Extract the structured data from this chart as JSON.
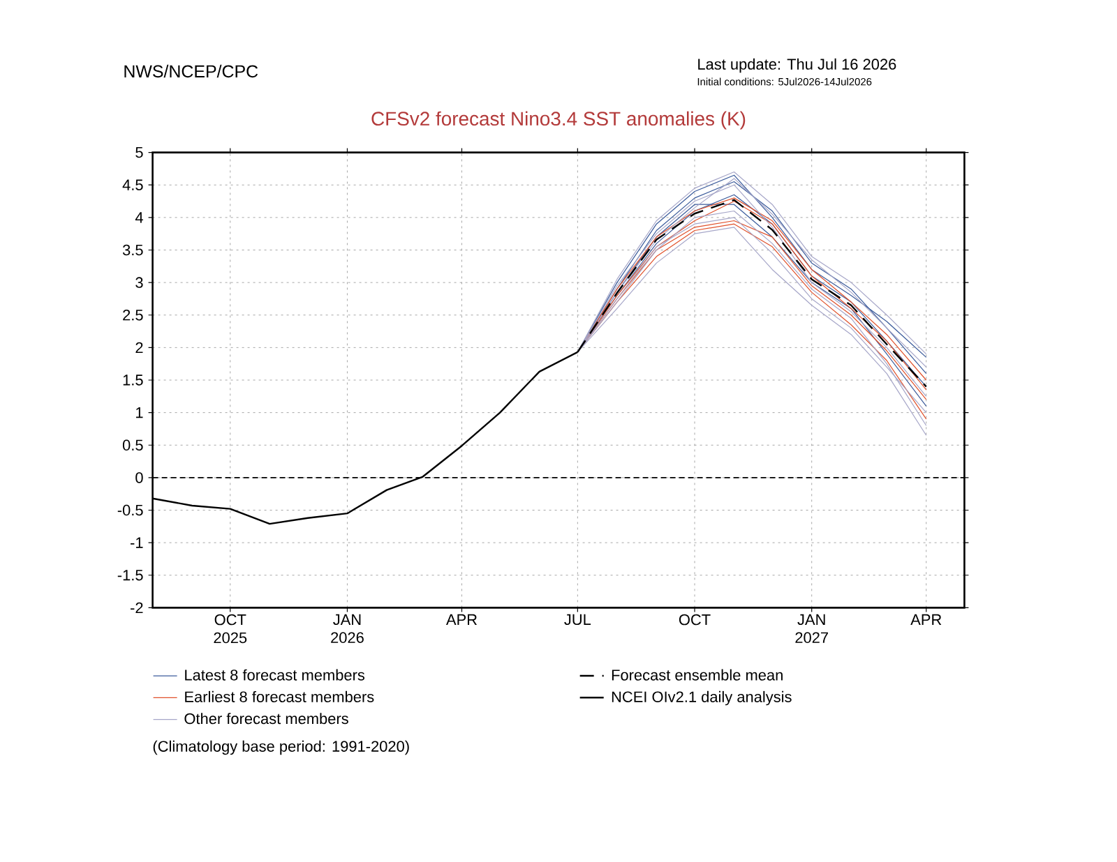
{
  "chart_data": {
    "type": "line",
    "title": "CFSv2 forecast Nino3.4 SST anomalies (K)",
    "annotations": [
      "NWS/NCEP/CPC",
      "Last update: Thu Jul 16 2026",
      "Initial conditions: 5Jul2026-14Jul2026",
      "(Climatology base period: 1991-2020)"
    ],
    "x": [
      "2026-07-01",
      "2026-08-01",
      "2026-09-01",
      "2026-10-01",
      "2026-11-01",
      "2026-12-01",
      "2027-01-01",
      "2027-02-01",
      "2027-03-01",
      "2027-04-01"
    ],
    "series": [
      {
        "name": "Latest 8 forecast members",
        "color": "#3b5b9b",
        "values": [
          1.93,
          2.9,
          3.8,
          4.3,
          4.55,
          4.1,
          3.3,
          2.9,
          2.3,
          1.6
        ]
      },
      {
        "color": "#3b5b9b",
        "values": [
          1.93,
          3.0,
          3.9,
          4.4,
          4.65,
          4.0,
          3.2,
          2.8,
          2.4,
          1.85
        ]
      },
      {
        "color": "#3b5b9b",
        "values": [
          1.93,
          2.8,
          3.6,
          4.1,
          4.35,
          3.9,
          3.1,
          2.7,
          2.1,
          1.4
        ]
      },
      {
        "color": "#3b5b9b",
        "values": [
          1.93,
          2.85,
          3.7,
          4.2,
          4.2,
          3.7,
          3.0,
          2.6,
          1.9,
          1.1
        ]
      },
      {
        "name": "Earliest 8 forecast members",
        "color": "#e0502a",
        "values": [
          1.93,
          2.8,
          3.55,
          3.95,
          4.25,
          3.9,
          3.1,
          2.6,
          2.1,
          1.35
        ]
      },
      {
        "color": "#e0502a",
        "values": [
          1.93,
          2.75,
          3.5,
          3.85,
          3.95,
          3.7,
          2.95,
          2.5,
          1.95,
          1.2
        ]
      },
      {
        "color": "#e0502a",
        "values": [
          1.93,
          2.9,
          3.7,
          4.1,
          4.3,
          3.95,
          3.2,
          2.7,
          2.2,
          1.5
        ]
      },
      {
        "color": "#e0502a",
        "values": [
          1.93,
          2.7,
          3.4,
          3.8,
          3.9,
          3.55,
          2.85,
          2.35,
          1.8,
          0.9
        ]
      },
      {
        "name": "Other forecast members",
        "color": "#a6a6c8",
        "values": [
          1.93,
          3.05,
          3.95,
          4.45,
          4.7,
          4.2,
          3.4,
          3.0,
          2.5,
          1.9
        ]
      },
      {
        "color": "#a6a6c8",
        "values": [
          1.93,
          2.6,
          3.3,
          3.75,
          3.85,
          3.2,
          2.65,
          2.2,
          1.6,
          0.65
        ]
      },
      {
        "color": "#a6a6c8",
        "values": [
          1.93,
          2.95,
          3.75,
          4.25,
          4.5,
          3.85,
          3.0,
          2.55,
          2.0,
          1.25
        ]
      },
      {
        "color": "#a6a6c8",
        "values": [
          1.93,
          2.7,
          3.5,
          4.0,
          4.1,
          3.6,
          2.9,
          2.45,
          1.75,
          0.8
        ]
      },
      {
        "color": "#a6a6c8",
        "values": [
          1.93,
          2.85,
          3.65,
          4.15,
          4.6,
          4.05,
          3.35,
          2.85,
          2.3,
          1.7
        ]
      },
      {
        "color": "#a6a6c8",
        "values": [
          1.93,
          2.75,
          3.55,
          3.9,
          4.0,
          3.45,
          2.75,
          2.3,
          1.7,
          1.0
        ]
      },
      {
        "name": "Forecast ensemble mean",
        "color": "#000000",
        "line_style": "dashed",
        "values": [
          1.93,
          2.84,
          3.66,
          4.06,
          4.27,
          3.81,
          3.05,
          2.65,
          2.05,
          1.4
        ]
      },
      {
        "name": "NCEI OIv2.1 daily analysis",
        "color": "#000000",
        "x": [
          "2025-08-01",
          "2025-09-01",
          "2025-10-01",
          "2025-11-01",
          "2025-12-01",
          "2026-01-01",
          "2026-02-01",
          "2026-03-01",
          "2026-04-01",
          "2026-05-01",
          "2026-06-01",
          "2026-07-01"
        ],
        "values": [
          -0.32,
          -0.43,
          -0.48,
          -0.71,
          -0.62,
          -0.55,
          -0.19,
          0.01,
          0.49,
          1.0,
          1.63,
          1.93
        ]
      }
    ],
    "xlim": [
      "2025-08-01",
      "2027-05-01"
    ],
    "ylim": [
      -2,
      5
    ],
    "xticks": [
      {
        "value": "2025-10-01",
        "label": "OCT 2025"
      },
      {
        "value": "2026-01-01",
        "label": "JAN 2026"
      },
      {
        "value": "2026-04-01",
        "label": "APR"
      },
      {
        "value": "2026-07-01",
        "label": "JUL"
      },
      {
        "value": "2026-10-01",
        "label": "OCT"
      },
      {
        "value": "2027-01-01",
        "label": "JAN 2027"
      },
      {
        "value": "2027-04-01",
        "label": "APR"
      }
    ],
    "yticks": [
      -2,
      -1.5,
      -1,
      -0.5,
      0,
      0.5,
      1,
      1.5,
      2,
      2.5,
      3,
      3.5,
      4,
      4.5,
      5
    ],
    "grid": true,
    "legend": "bottom",
    "ref_lines": [
      {
        "axis": "y",
        "value": 0,
        "color": "#000000",
        "line_style": "dashed"
      }
    ]
  }
}
